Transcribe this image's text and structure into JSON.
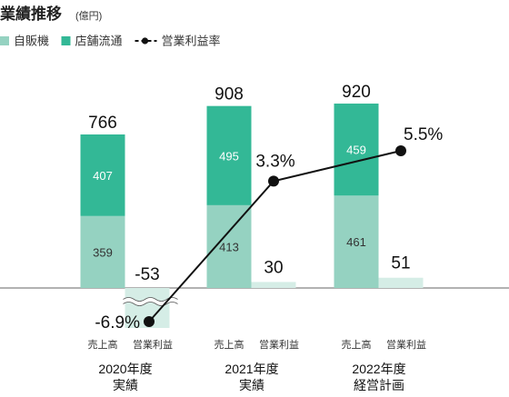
{
  "chart_data": {
    "type": "bar",
    "title": "業績推移",
    "unit": "(億円)",
    "legend": {
      "placement": "top-left",
      "items": [
        {
          "name": "自販機",
          "marker": "square",
          "color": "#95d2c1"
        },
        {
          "name": "店舗流通",
          "marker": "square",
          "color": "#33b896"
        },
        {
          "name": "営業利益率",
          "marker": "line-dot",
          "color": "#111111"
        }
      ]
    },
    "groups": [
      {
        "year": "2020年度",
        "status": "実績",
        "sales_label": "売上高",
        "profit_label": "営業利益",
        "vending": 359,
        "store": 407,
        "total": 766,
        "profit": -53,
        "profit_label_text": "-53",
        "margin": -6.9,
        "margin_label": "-6.9%",
        "axis_break": true
      },
      {
        "year": "2021年度",
        "status": "実績",
        "sales_label": "売上高",
        "profit_label": "営業利益",
        "vending": 413,
        "store": 495,
        "total": 908,
        "profit": 30,
        "profit_label_text": "30",
        "margin": 3.3,
        "margin_label": "3.3%",
        "axis_break": false
      },
      {
        "year": "2022年度",
        "status": "経営計画",
        "sales_label": "売上高",
        "profit_label": "営業利益",
        "vending": 461,
        "store": 459,
        "total": 920,
        "profit": 51,
        "profit_label_text": "51",
        "margin": 5.5,
        "margin_label": "5.5%",
        "axis_break": false
      }
    ],
    "colors": {
      "vending": "#95d2c1",
      "store": "#33b896",
      "profit": "#d5ede6",
      "margin_line": "#111111"
    },
    "grid": false
  }
}
